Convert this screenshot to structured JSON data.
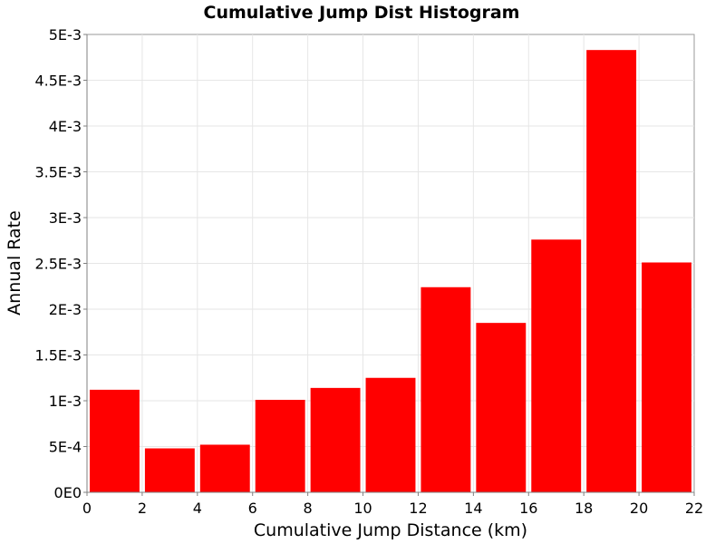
{
  "chart_data": {
    "type": "bar",
    "title": "Cumulative Jump Dist Histogram",
    "xlabel": "Cumulative Jump Distance (km)",
    "ylabel": "Annual Rate",
    "xlim": [
      0,
      22
    ],
    "ylim": [
      0,
      0.005
    ],
    "bin_width": 2,
    "x_ticks": [
      0,
      2,
      4,
      6,
      8,
      10,
      12,
      14,
      16,
      18,
      20,
      22
    ],
    "x_tick_labels": [
      "0",
      "2",
      "4",
      "6",
      "8",
      "10",
      "12",
      "14",
      "16",
      "18",
      "20",
      "22"
    ],
    "y_ticks": [
      0,
      0.0005,
      0.001,
      0.0015,
      0.002,
      0.0025,
      0.003,
      0.0035,
      0.004,
      0.0045,
      0.005
    ],
    "y_tick_labels": [
      "0E0",
      "5E-4",
      "1E-3",
      "1.5E-3",
      "2E-3",
      "2.5E-3",
      "3E-3",
      "3.5E-3",
      "4E-3",
      "4.5E-3",
      "5E-3"
    ],
    "bins": [
      {
        "x_start": 0,
        "x_end": 2,
        "value": 0.00112
      },
      {
        "x_start": 2,
        "x_end": 4,
        "value": 0.00048
      },
      {
        "x_start": 4,
        "x_end": 6,
        "value": 0.00052
      },
      {
        "x_start": 6,
        "x_end": 8,
        "value": 0.00101
      },
      {
        "x_start": 8,
        "x_end": 10,
        "value": 0.00114
      },
      {
        "x_start": 10,
        "x_end": 12,
        "value": 0.00125
      },
      {
        "x_start": 12,
        "x_end": 14,
        "value": 0.00224
      },
      {
        "x_start": 14,
        "x_end": 16,
        "value": 0.00185
      },
      {
        "x_start": 16,
        "x_end": 18,
        "value": 0.00276
      },
      {
        "x_start": 18,
        "x_end": 20,
        "value": 0.00483
      },
      {
        "x_start": 20,
        "x_end": 22,
        "value": 0.00251
      }
    ],
    "bar_color": "#ff0000",
    "grid": true,
    "legend": "none"
  }
}
